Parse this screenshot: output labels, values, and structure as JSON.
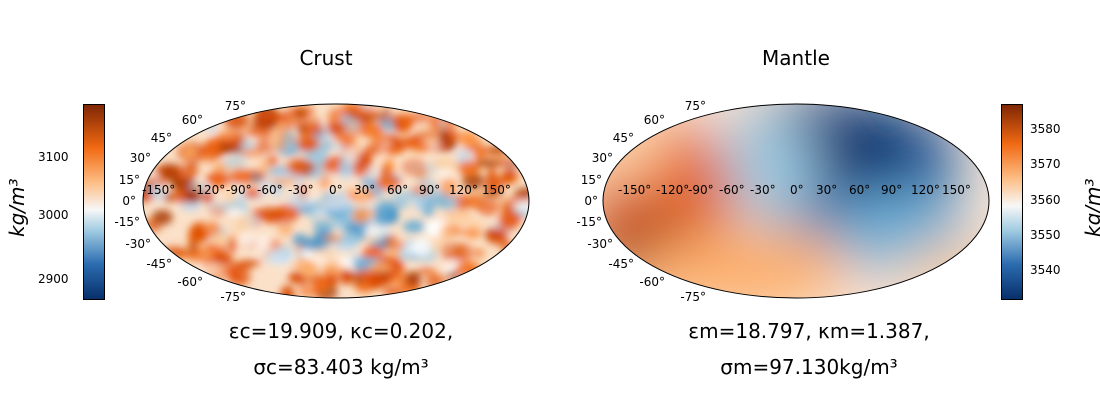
{
  "chart_data": [
    {
      "type": "heatmap",
      "projection": "mollweide",
      "title": "Crust",
      "lon_ticks": [
        "-150°",
        "-120°",
        "-90°",
        "-60°",
        "-30°",
        "0°",
        "30°",
        "60°",
        "90°",
        "120°",
        "150°"
      ],
      "lat_ticks": [
        "75°",
        "60°",
        "45°",
        "30°",
        "15°",
        "0°",
        "-15°",
        "-30°",
        "-45°",
        "-60°",
        "-75°"
      ],
      "colorbar": {
        "ticks": [
          3100,
          3000,
          2900
        ],
        "range": [
          2865,
          3190
        ],
        "label": "kg/m³",
        "cmap": "blue-white-orange"
      },
      "stats": {
        "line1": "εc=19.909, κc=0.202,",
        "line2": "σc=83.403 kg/m³"
      }
    },
    {
      "type": "heatmap",
      "projection": "mollweide",
      "title": "Mantle",
      "lon_ticks": [
        "-150°",
        "-120°",
        "-90°",
        "-60°",
        "-30°",
        "0°",
        "30°",
        "60°",
        "90°",
        "120°",
        "150°"
      ],
      "lat_ticks": [
        "75°",
        "60°",
        "45°",
        "30°",
        "15°",
        "0°",
        "-15°",
        "-30°",
        "-45°",
        "-60°",
        "-75°"
      ],
      "colorbar": {
        "ticks": [
          3580,
          3570,
          3560,
          3550,
          3540
        ],
        "range": [
          3532,
          3587
        ],
        "label": "kg/m³",
        "cmap": "blue-white-orange"
      },
      "stats": {
        "line1": "εm=18.797, κm=1.387,",
        "line2": "σm=97.130kg/m³"
      }
    }
  ],
  "colors": {
    "low": "#08306b",
    "mid": "#f7f7f7",
    "high": "#7f2704"
  }
}
